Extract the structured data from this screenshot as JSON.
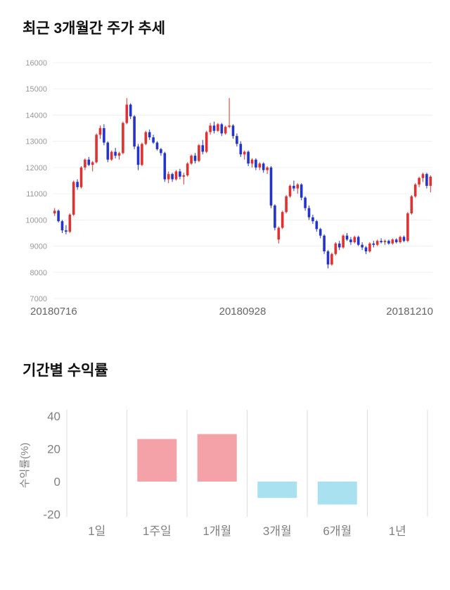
{
  "chart_data": [
    {
      "type": "candlestick",
      "title": "최근 3개월간 주가 추세",
      "ylim": [
        7000,
        16000
      ],
      "yticks": [
        7000,
        8000,
        9000,
        10000,
        11000,
        12000,
        13000,
        14000,
        15000,
        16000
      ],
      "xtick_labels": [
        "20180716",
        "20180928",
        "20181210"
      ],
      "up_color": "#e03030",
      "down_color": "#2433cc",
      "grid_color": "#f0f0f0",
      "ytick_color": "#999999",
      "xtick_color": "#666666",
      "candles": [
        [
          10250,
          10450,
          10150,
          10350
        ],
        [
          10350,
          10400,
          9900,
          9950
        ],
        [
          9950,
          10000,
          9500,
          9600
        ],
        [
          9600,
          9800,
          9450,
          9550
        ],
        [
          9550,
          10250,
          9500,
          10200
        ],
        [
          10200,
          11500,
          10150,
          11450
        ],
        [
          11450,
          11550,
          11150,
          11250
        ],
        [
          11250,
          12050,
          11200,
          12000
        ],
        [
          12000,
          12350,
          11900,
          12300
        ],
        [
          12300,
          12400,
          12050,
          12100
        ],
        [
          12100,
          12250,
          11850,
          12200
        ],
        [
          12200,
          13300,
          12150,
          13250
        ],
        [
          13250,
          13600,
          13100,
          13500
        ],
        [
          13500,
          13650,
          12850,
          12950
        ],
        [
          12950,
          13000,
          12200,
          12300
        ],
        [
          12300,
          12650,
          12250,
          12600
        ],
        [
          12600,
          12750,
          12350,
          12450
        ],
        [
          12450,
          12600,
          12300,
          12550
        ],
        [
          12550,
          13750,
          12500,
          13700
        ],
        [
          13700,
          14650,
          13650,
          14400
        ],
        [
          14400,
          14450,
          13850,
          13950
        ],
        [
          13950,
          14000,
          12700,
          12800
        ],
        [
          12800,
          12900,
          11900,
          12100
        ],
        [
          12100,
          12950,
          12050,
          12900
        ],
        [
          12900,
          13400,
          12850,
          13350
        ],
        [
          13350,
          13450,
          13050,
          13150
        ],
        [
          13150,
          13250,
          12900,
          12950
        ],
        [
          12950,
          13000,
          12650,
          12700
        ],
        [
          12700,
          12750,
          12450,
          12550
        ],
        [
          12550,
          12600,
          11450,
          11550
        ],
        [
          11550,
          11850,
          11400,
          11750
        ],
        [
          11750,
          11800,
          11450,
          11550
        ],
        [
          11550,
          11900,
          11500,
          11850
        ],
        [
          11850,
          11950,
          11550,
          11650
        ],
        [
          11650,
          11800,
          11350,
          11700
        ],
        [
          11700,
          12200,
          11650,
          12150
        ],
        [
          12150,
          12500,
          12100,
          12450
        ],
        [
          12450,
          12550,
          12150,
          12250
        ],
        [
          12250,
          12900,
          12200,
          12850
        ],
        [
          12850,
          13050,
          12500,
          12600
        ],
        [
          12600,
          13400,
          12550,
          13350
        ],
        [
          13350,
          13700,
          13250,
          13600
        ],
        [
          13600,
          13750,
          13300,
          13400
        ],
        [
          13400,
          13700,
          13350,
          13650
        ],
        [
          13650,
          13700,
          13200,
          13300
        ],
        [
          13300,
          13600,
          13250,
          13550
        ],
        [
          13550,
          14650,
          13500,
          13600
        ],
        [
          13600,
          13650,
          13100,
          13200
        ],
        [
          13200,
          13300,
          12800,
          12900
        ],
        [
          12900,
          13000,
          12400,
          12500
        ],
        [
          12500,
          12650,
          12300,
          12600
        ],
        [
          12600,
          12650,
          12050,
          12150
        ],
        [
          12150,
          12350,
          12000,
          12300
        ],
        [
          12300,
          12350,
          11900,
          12000
        ],
        [
          12000,
          12200,
          11900,
          12150
        ],
        [
          12150,
          12200,
          11800,
          11900
        ],
        [
          11900,
          12050,
          11750,
          12000
        ],
        [
          12000,
          12050,
          10450,
          10550
        ],
        [
          10550,
          10600,
          9600,
          9700
        ],
        [
          9250,
          9750,
          9100,
          9700
        ],
        [
          9700,
          10350,
          9650,
          10300
        ],
        [
          10300,
          10950,
          10250,
          10900
        ],
        [
          10900,
          11350,
          10850,
          11300
        ],
        [
          11300,
          11500,
          11100,
          11200
        ],
        [
          11200,
          11400,
          11000,
          11350
        ],
        [
          11350,
          11400,
          10750,
          10850
        ],
        [
          10850,
          10900,
          10350,
          10450
        ],
        [
          10450,
          10550,
          10000,
          10100
        ],
        [
          10100,
          10200,
          9850,
          9950
        ],
        [
          9950,
          10000,
          9550,
          9650
        ],
        [
          9650,
          9700,
          9300,
          9400
        ],
        [
          9400,
          9450,
          8700,
          8800
        ],
        [
          8800,
          8850,
          8150,
          8300
        ],
        [
          8300,
          8750,
          8250,
          8700
        ],
        [
          8700,
          9150,
          8650,
          9100
        ],
        [
          9100,
          9200,
          8850,
          8950
        ],
        [
          8950,
          9450,
          8900,
          9400
        ],
        [
          9400,
          9500,
          9200,
          9250
        ],
        [
          9250,
          9350,
          9050,
          9150
        ],
        [
          9150,
          9400,
          9100,
          9350
        ],
        [
          9350,
          9400,
          9000,
          9050
        ],
        [
          9050,
          9150,
          8850,
          8950
        ],
        [
          8950,
          9000,
          8700,
          8800
        ],
        [
          8800,
          9150,
          8750,
          9100
        ],
        [
          9100,
          9200,
          8950,
          9050
        ],
        [
          9050,
          9250,
          9000,
          9200
        ],
        [
          9200,
          9300,
          9100,
          9150
        ],
        [
          9150,
          9250,
          9050,
          9200
        ],
        [
          9200,
          9250,
          9050,
          9100
        ],
        [
          9100,
          9300,
          9050,
          9250
        ],
        [
          9250,
          9300,
          9100,
          9150
        ],
        [
          9150,
          9400,
          9100,
          9350
        ],
        [
          9350,
          9400,
          9150,
          9200
        ],
        [
          9200,
          10300,
          9150,
          10250
        ],
        [
          10250,
          10950,
          10200,
          10900
        ],
        [
          10900,
          11400,
          10850,
          11350
        ],
        [
          11350,
          11650,
          11250,
          11600
        ],
        [
          11600,
          11800,
          11450,
          11750
        ],
        [
          11750,
          11800,
          11200,
          11300
        ],
        [
          11300,
          11700,
          11050,
          11650
        ]
      ]
    },
    {
      "type": "bar",
      "title": "기간별 수익률",
      "categories": [
        "1일",
        "1주일",
        "1개월",
        "3개월",
        "6개월",
        "1년"
      ],
      "values": [
        0,
        26,
        29,
        -10,
        -14,
        0
      ],
      "ylabel": "수익률(%)",
      "ylim": [
        -20,
        40
      ],
      "yticks": [
        40,
        20,
        0,
        -20
      ],
      "positive_color": "#f5a1a8",
      "negative_color": "#a9e1f0",
      "grid_color": "#dddddd",
      "tick_color": "#808080",
      "legend_position": "none",
      "grid": "vertical"
    }
  ]
}
